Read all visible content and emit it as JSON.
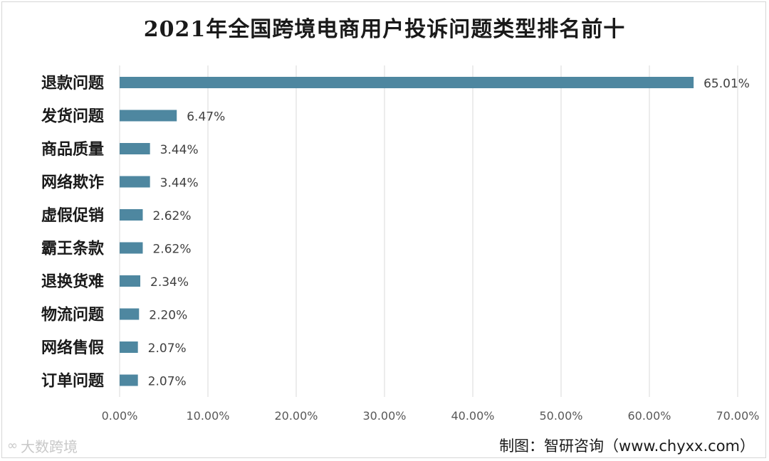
{
  "chart_data": {
    "type": "bar",
    "orientation": "horizontal",
    "title": "2021年全国跨境电商用户投诉问题类型排名前十",
    "categories": [
      "退款问题",
      "发货问题",
      "商品质量",
      "网络欺诈",
      "虚假促销",
      "霸王条款",
      "退换货难",
      "物流问题",
      "网络售假",
      "订单问题"
    ],
    "values": [
      65.01,
      6.47,
      3.44,
      3.44,
      2.62,
      2.62,
      2.34,
      2.2,
      2.07,
      2.07
    ],
    "value_labels": [
      "65.01%",
      "6.47%",
      "3.44%",
      "3.44%",
      "2.62%",
      "2.62%",
      "2.34%",
      "2.20%",
      "2.07%",
      "2.07%"
    ],
    "xlim": [
      0,
      70
    ],
    "x_ticks": [
      "0.00%",
      "10.00%",
      "20.00%",
      "30.00%",
      "40.00%",
      "50.00%",
      "60.00%",
      "70.00%"
    ],
    "grid": "vertical",
    "bar_color": "#4e87a0"
  },
  "source": "制图：智研咨询（www.chyxx.com）",
  "watermark": "大数跨境"
}
